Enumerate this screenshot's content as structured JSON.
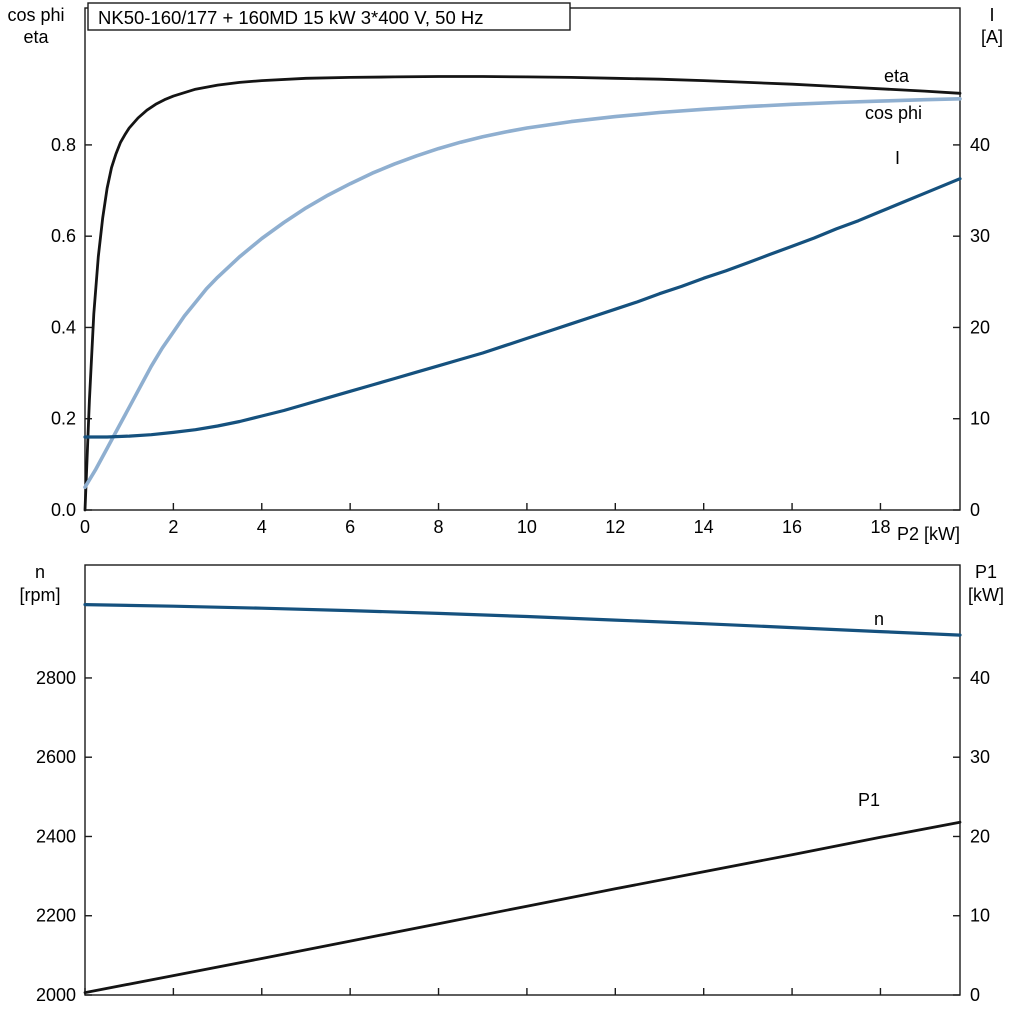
{
  "colors": {
    "axis": "#1a1a1a",
    "eta_black": "#141414",
    "cos_phi_blue": "#8fafd0",
    "current_blue": "#15517e",
    "speed_blue": "#15517e",
    "p1_black": "#141414"
  },
  "chart_data": [
    {
      "type": "line",
      "title": "NK50-160/177 + 160MD   15 kW   3*400 V, 50 Hz",
      "x_label": "P2 [kW]",
      "y_left_title": [
        "cos phi",
        "eta"
      ],
      "y_right_title": [
        "I",
        "[A]"
      ],
      "x_range": [
        0,
        19.8
      ],
      "x_ticks": [
        0,
        2,
        4,
        6,
        8,
        10,
        12,
        14,
        16,
        18
      ],
      "y_left_range": [
        0,
        1.1
      ],
      "y_left_ticks": [
        0,
        0.2,
        0.4,
        0.6,
        0.8
      ],
      "y_left_tick_labels": [
        "0.0",
        "0.2",
        "0.4",
        "0.6",
        "0.8"
      ],
      "y_right_range": [
        0,
        55
      ],
      "y_right_ticks": [
        0,
        10,
        20,
        30,
        40
      ],
      "grid": false,
      "legend_position": "curve-end-labels",
      "series": [
        {
          "name": "eta",
          "axis": "left",
          "color": "#141414",
          "points": [
            [
              0,
              0
            ],
            [
              0.05,
              0.12
            ],
            [
              0.1,
              0.24
            ],
            [
              0.2,
              0.43
            ],
            [
              0.3,
              0.555
            ],
            [
              0.4,
              0.64
            ],
            [
              0.5,
              0.705
            ],
            [
              0.6,
              0.75
            ],
            [
              0.7,
              0.78
            ],
            [
              0.8,
              0.805
            ],
            [
              0.9,
              0.822
            ],
            [
              1,
              0.837
            ],
            [
              1.2,
              0.859
            ],
            [
              1.4,
              0.876
            ],
            [
              1.6,
              0.889
            ],
            [
              1.8,
              0.899
            ],
            [
              2,
              0.907
            ],
            [
              2.5,
              0.922
            ],
            [
              3,
              0.931
            ],
            [
              3.5,
              0.937
            ],
            [
              4,
              0.941
            ],
            [
              5,
              0.946
            ],
            [
              6,
              0.948
            ],
            [
              7,
              0.949
            ],
            [
              8,
              0.95
            ],
            [
              9,
              0.95
            ],
            [
              10,
              0.949
            ],
            [
              11,
              0.948
            ],
            [
              12,
              0.946
            ],
            [
              13,
              0.944
            ],
            [
              14,
              0.941
            ],
            [
              15,
              0.937
            ],
            [
              16,
              0.933
            ],
            [
              17,
              0.928
            ],
            [
              18,
              0.923
            ],
            [
              19,
              0.918
            ],
            [
              19.8,
              0.913
            ]
          ]
        },
        {
          "name": "cos phi",
          "axis": "left",
          "color": "#8fafd0",
          "points": [
            [
              0,
              0.05
            ],
            [
              0.25,
              0.09
            ],
            [
              0.5,
              0.135
            ],
            [
              0.75,
              0.18
            ],
            [
              1,
              0.225
            ],
            [
              1.25,
              0.27
            ],
            [
              1.5,
              0.315
            ],
            [
              1.75,
              0.355
            ],
            [
              2,
              0.39
            ],
            [
              2.25,
              0.425
            ],
            [
              2.5,
              0.455
            ],
            [
              2.75,
              0.485
            ],
            [
              3,
              0.51
            ],
            [
              3.5,
              0.555
            ],
            [
              4,
              0.595
            ],
            [
              4.5,
              0.63
            ],
            [
              5,
              0.662
            ],
            [
              5.5,
              0.69
            ],
            [
              6,
              0.715
            ],
            [
              6.5,
              0.738
            ],
            [
              7,
              0.758
            ],
            [
              7.5,
              0.776
            ],
            [
              8,
              0.792
            ],
            [
              8.5,
              0.806
            ],
            [
              9,
              0.818
            ],
            [
              9.5,
              0.828
            ],
            [
              10,
              0.837
            ],
            [
              11,
              0.851
            ],
            [
              12,
              0.862
            ],
            [
              13,
              0.871
            ],
            [
              14,
              0.878
            ],
            [
              15,
              0.884
            ],
            [
              16,
              0.889
            ],
            [
              17,
              0.893
            ],
            [
              18,
              0.896
            ],
            [
              19,
              0.899
            ],
            [
              19.8,
              0.901
            ]
          ]
        },
        {
          "name": "I",
          "axis": "right",
          "color": "#15517e",
          "points": [
            [
              0,
              8
            ],
            [
              0.5,
              8
            ],
            [
              1,
              8.1
            ],
            [
              1.5,
              8.25
            ],
            [
              2,
              8.5
            ],
            [
              2.5,
              8.8
            ],
            [
              3,
              9.2
            ],
            [
              3.5,
              9.7
            ],
            [
              4,
              10.3
            ],
            [
              4.5,
              10.9
            ],
            [
              5,
              11.6
            ],
            [
              5.5,
              12.3
            ],
            [
              6,
              13
            ],
            [
              6.5,
              13.7
            ],
            [
              7,
              14.4
            ],
            [
              7.5,
              15.1
            ],
            [
              8,
              15.8
            ],
            [
              8.5,
              16.5
            ],
            [
              9,
              17.2
            ],
            [
              9.5,
              18
            ],
            [
              10,
              18.8
            ],
            [
              10.5,
              19.6
            ],
            [
              11,
              20.4
            ],
            [
              11.5,
              21.2
            ],
            [
              12,
              22
            ],
            [
              12.5,
              22.8
            ],
            [
              13,
              23.7
            ],
            [
              13.5,
              24.5
            ],
            [
              14,
              25.4
            ],
            [
              14.5,
              26.2
            ],
            [
              15,
              27.1
            ],
            [
              15.5,
              28
            ],
            [
              16,
              28.9
            ],
            [
              16.5,
              29.8
            ],
            [
              17,
              30.8
            ],
            [
              17.5,
              31.7
            ],
            [
              18,
              32.7
            ],
            [
              18.5,
              33.7
            ],
            [
              19,
              34.7
            ],
            [
              19.8,
              36.3
            ]
          ]
        }
      ]
    },
    {
      "type": "line",
      "title": "",
      "x_label": "",
      "y_left_title": [
        "n",
        "[rpm]"
      ],
      "y_right_title": [
        "P1",
        "[kW]"
      ],
      "x_range": [
        0,
        19.8
      ],
      "x_ticks": [
        0,
        2,
        4,
        6,
        8,
        10,
        12,
        14,
        16,
        18
      ],
      "y_left_range": [
        2000,
        3085
      ],
      "y_left_ticks": [
        2000,
        2200,
        2400,
        2600,
        2800
      ],
      "y_left_tick_labels": [
        "2000",
        "2200",
        "2400",
        "2600",
        "2800"
      ],
      "y_right_range": [
        0,
        54.25
      ],
      "y_right_ticks": [
        0,
        10,
        20,
        30,
        40
      ],
      "grid": false,
      "legend_position": "curve-end-labels",
      "series": [
        {
          "name": "n",
          "axis": "left",
          "color": "#15517e",
          "points": [
            [
              0,
              2985
            ],
            [
              2,
              2981
            ],
            [
              4,
              2976
            ],
            [
              6,
              2970
            ],
            [
              8,
              2963
            ],
            [
              10,
              2955
            ],
            [
              12,
              2946
            ],
            [
              14,
              2937
            ],
            [
              16,
              2927
            ],
            [
              18,
              2917
            ],
            [
              19.8,
              2908
            ]
          ]
        },
        {
          "name": "P1",
          "axis": "right",
          "color": "#141414",
          "points": [
            [
              0,
              0.3
            ],
            [
              2,
              2.45
            ],
            [
              4,
              4.6
            ],
            [
              6,
              6.8
            ],
            [
              8,
              9
            ],
            [
              10,
              11.2
            ],
            [
              12,
              13.4
            ],
            [
              14,
              15.55
            ],
            [
              16,
              17.7
            ],
            [
              18,
              19.9
            ],
            [
              19.8,
              21.8
            ]
          ]
        }
      ]
    }
  ]
}
